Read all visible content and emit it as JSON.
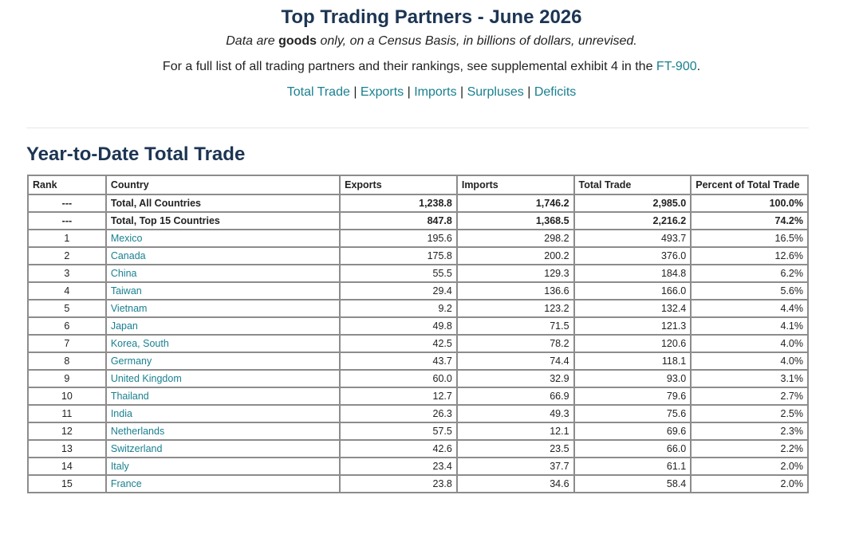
{
  "header": {
    "title": "Top Trading Partners - June 2026",
    "subtitle_before": "Data are ",
    "subtitle_bold": "goods",
    "subtitle_after": " only, on a Census Basis, in billions of dollars, unrevised.",
    "fulllist_before": "For a full list of all trading partners and their rankings, see supplemental exhibit 4 in the ",
    "fulllist_link": "FT-900",
    "fulllist_after": ".",
    "nav": {
      "total_trade": "Total Trade",
      "exports": "Exports",
      "imports": "Imports",
      "surpluses": "Surpluses",
      "deficits": "Deficits",
      "separator": " | "
    }
  },
  "section": {
    "title": "Year-to-Date Total Trade"
  },
  "table": {
    "headers": {
      "rank": "Rank",
      "country": "Country",
      "exports": "Exports",
      "imports": "Imports",
      "total": "Total Trade",
      "percent": "Percent of Total Trade"
    },
    "totals": [
      {
        "rank": "---",
        "country": "Total, All Countries",
        "exports": "1,238.8",
        "imports": "1,746.2",
        "total": "2,985.0",
        "percent": "100.0%"
      },
      {
        "rank": "---",
        "country": "Total, Top 15 Countries",
        "exports": "847.8",
        "imports": "1,368.5",
        "total": "2,216.2",
        "percent": "74.2%"
      }
    ],
    "rows": [
      {
        "rank": "1",
        "country": "Mexico",
        "exports": "195.6",
        "imports": "298.2",
        "total": "493.7",
        "percent": "16.5%"
      },
      {
        "rank": "2",
        "country": "Canada",
        "exports": "175.8",
        "imports": "200.2",
        "total": "376.0",
        "percent": "12.6%"
      },
      {
        "rank": "3",
        "country": "China",
        "exports": "55.5",
        "imports": "129.3",
        "total": "184.8",
        "percent": "6.2%"
      },
      {
        "rank": "4",
        "country": "Taiwan",
        "exports": "29.4",
        "imports": "136.6",
        "total": "166.0",
        "percent": "5.6%"
      },
      {
        "rank": "5",
        "country": "Vietnam",
        "exports": "9.2",
        "imports": "123.2",
        "total": "132.4",
        "percent": "4.4%"
      },
      {
        "rank": "6",
        "country": "Japan",
        "exports": "49.8",
        "imports": "71.5",
        "total": "121.3",
        "percent": "4.1%"
      },
      {
        "rank": "7",
        "country": "Korea, South",
        "exports": "42.5",
        "imports": "78.2",
        "total": "120.6",
        "percent": "4.0%"
      },
      {
        "rank": "8",
        "country": "Germany",
        "exports": "43.7",
        "imports": "74.4",
        "total": "118.1",
        "percent": "4.0%"
      },
      {
        "rank": "9",
        "country": "United Kingdom",
        "exports": "60.0",
        "imports": "32.9",
        "total": "93.0",
        "percent": "3.1%"
      },
      {
        "rank": "10",
        "country": "Thailand",
        "exports": "12.7",
        "imports": "66.9",
        "total": "79.6",
        "percent": "2.7%"
      },
      {
        "rank": "11",
        "country": "India",
        "exports": "26.3",
        "imports": "49.3",
        "total": "75.6",
        "percent": "2.5%"
      },
      {
        "rank": "12",
        "country": "Netherlands",
        "exports": "57.5",
        "imports": "12.1",
        "total": "69.6",
        "percent": "2.3%"
      },
      {
        "rank": "13",
        "country": "Switzerland",
        "exports": "42.6",
        "imports": "23.5",
        "total": "66.0",
        "percent": "2.2%"
      },
      {
        "rank": "14",
        "country": "Italy",
        "exports": "23.4",
        "imports": "37.7",
        "total": "61.1",
        "percent": "2.0%"
      },
      {
        "rank": "15",
        "country": "France",
        "exports": "23.8",
        "imports": "34.6",
        "total": "58.4",
        "percent": "2.0%"
      }
    ]
  },
  "colors": {
    "title": "#1c3553",
    "link": "#1a8090",
    "border": "#8c8c8c"
  }
}
